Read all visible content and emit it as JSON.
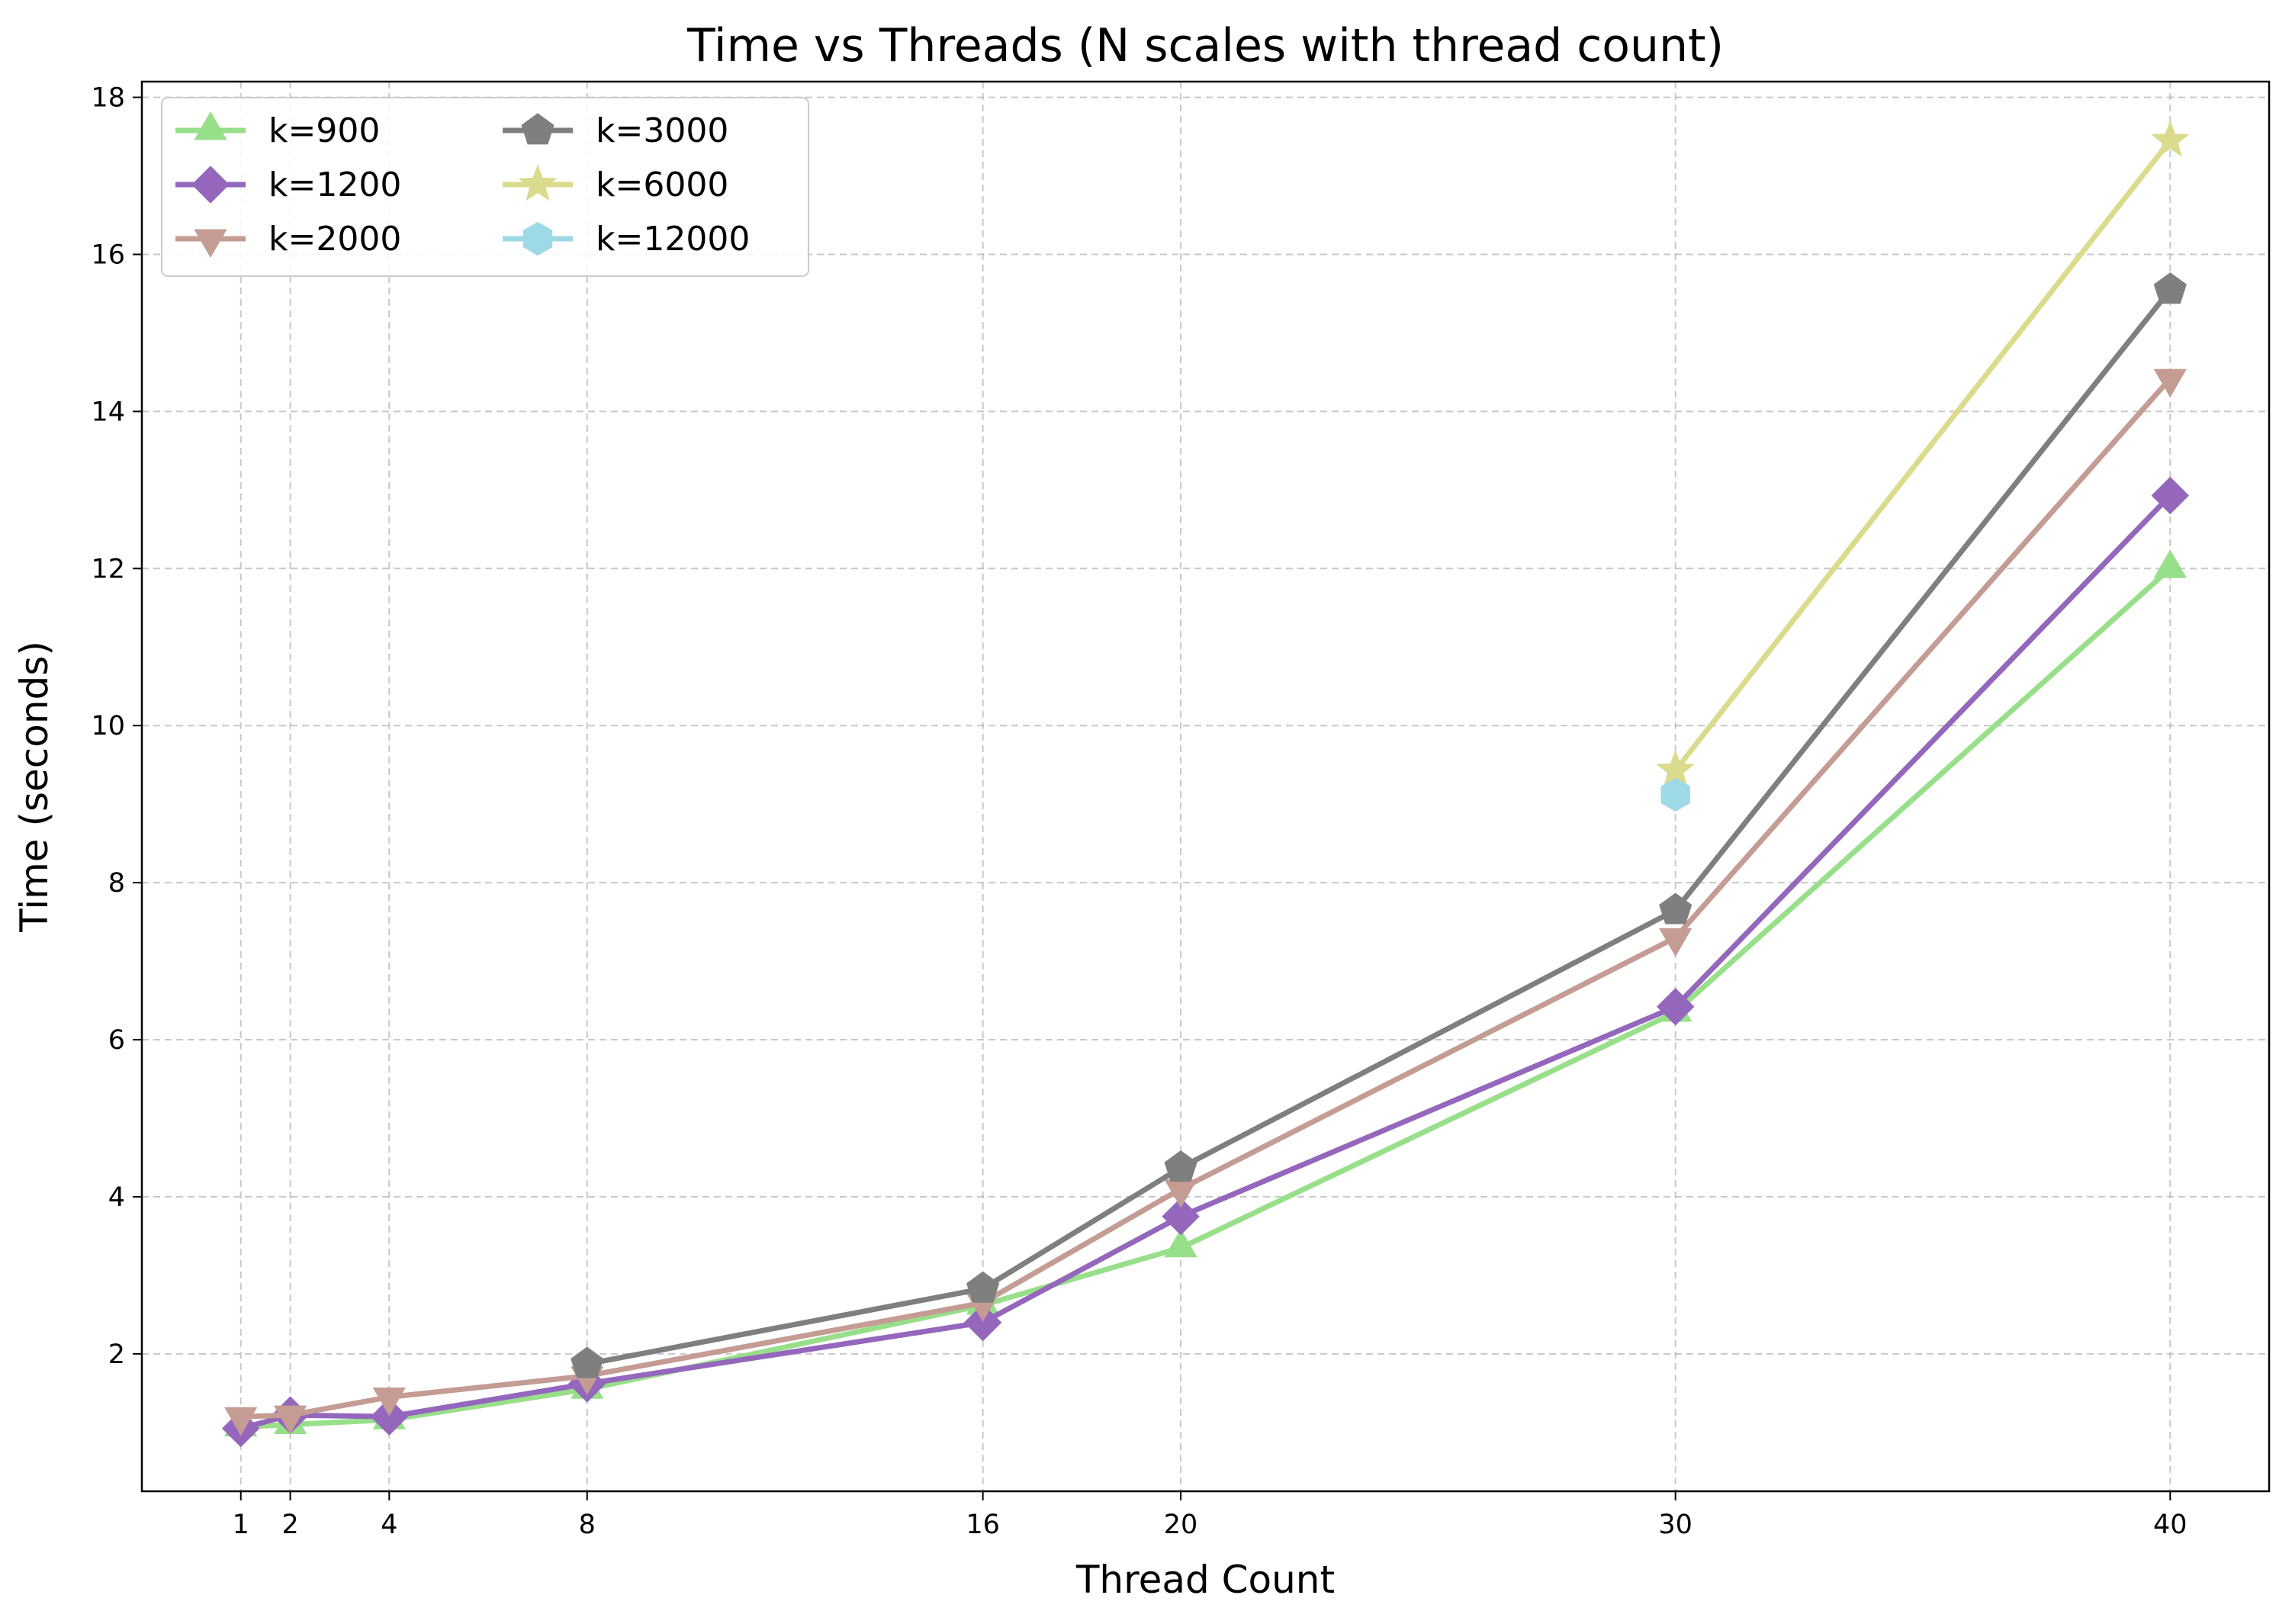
{
  "chart_data": {
    "type": "line",
    "title": "Time vs Threads (N scales with thread count)",
    "xlabel": "Thread Count",
    "ylabel": "Time (seconds)",
    "x_ticks": [
      1,
      2,
      4,
      8,
      16,
      20,
      30,
      40
    ],
    "y_ticks": [
      2,
      4,
      6,
      8,
      10,
      12,
      14,
      16,
      18
    ],
    "xlim": [
      -1,
      42
    ],
    "ylim": [
      0.25,
      18.2
    ],
    "grid": true,
    "grid_style": "dashed",
    "legend_position": "upper-left",
    "legend_columns": 2,
    "series": [
      {
        "name": "k=900",
        "color": "#98df8a",
        "marker": "triangle-up",
        "x": [
          1,
          2,
          4,
          8,
          16,
          20,
          30,
          40
        ],
        "y": [
          1.07,
          1.1,
          1.16,
          1.55,
          2.62,
          3.35,
          6.35,
          12.0
        ]
      },
      {
        "name": "k=1200",
        "color": "#9467bd",
        "marker": "diamond",
        "x": [
          1,
          2,
          4,
          8,
          16,
          20,
          30,
          40
        ],
        "y": [
          1.05,
          1.22,
          1.2,
          1.62,
          2.4,
          3.75,
          6.42,
          12.93
        ]
      },
      {
        "name": "k=2000",
        "color": "#c49c94",
        "marker": "triangle-down",
        "x": [
          1,
          2,
          4,
          8,
          16,
          20,
          30,
          40
        ],
        "y": [
          1.2,
          1.22,
          1.45,
          1.72,
          2.65,
          4.1,
          7.3,
          14.42
        ]
      },
      {
        "name": "k=3000",
        "color": "#7f7f7f",
        "marker": "pentagon",
        "x": [
          8,
          16,
          20,
          30,
          40
        ],
        "y": [
          1.87,
          2.83,
          4.37,
          7.65,
          15.55
        ]
      },
      {
        "name": "k=6000",
        "color": "#dbdb8d",
        "marker": "star",
        "x": [
          30,
          40
        ],
        "y": [
          9.43,
          17.45
        ]
      },
      {
        "name": "k=12000",
        "color": "#9edae5",
        "marker": "hexagon",
        "x": [
          30
        ],
        "y": [
          9.12
        ]
      }
    ]
  }
}
